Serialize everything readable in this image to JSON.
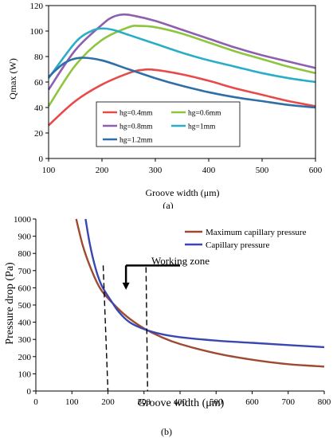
{
  "chart_data": [
    {
      "type": "line",
      "panel_label": "(a)",
      "xlabel": "Groove width (μm)",
      "ylabel": "Qmax (W)",
      "xlim": [
        100,
        600
      ],
      "ylim": [
        0,
        120
      ],
      "xticks": [
        "100",
        "200",
        "300",
        "400",
        "500",
        "600"
      ],
      "yticks": [
        "0",
        "20",
        "40",
        "60",
        "80",
        "100",
        "120"
      ],
      "grid": false,
      "legend_position": "inside-bottom-left",
      "series": [
        {
          "name": "hg=0.4mm",
          "color": "#e84a4a",
          "x": [
            100,
            150,
            200,
            250,
            275,
            300,
            350,
            400,
            450,
            500,
            550,
            600
          ],
          "y": [
            26,
            45,
            58,
            67,
            69.5,
            69.5,
            66,
            61,
            55,
            50,
            45,
            41
          ]
        },
        {
          "name": "hg=0.6mm",
          "color": "#8cc63f",
          "x": [
            100,
            150,
            200,
            250,
            270,
            300,
            350,
            400,
            450,
            500,
            550,
            600
          ],
          "y": [
            41,
            73,
            93,
            103,
            104,
            103,
            98,
            91,
            84,
            78,
            72,
            67
          ]
        },
        {
          "name": "hg=0.8mm",
          "color": "#8e5fb0",
          "x": [
            100,
            150,
            200,
            220,
            240,
            260,
            300,
            350,
            400,
            450,
            500,
            550,
            600
          ],
          "y": [
            54,
            85,
            105,
            111,
            113,
            112,
            108,
            101,
            94,
            87,
            81,
            76,
            71
          ]
        },
        {
          "name": "hg=1mm",
          "color": "#2aaec8",
          "x": [
            100,
            150,
            180,
            200,
            220,
            250,
            300,
            350,
            400,
            450,
            500,
            550,
            600
          ],
          "y": [
            63,
            91,
            100,
            102,
            101,
            97,
            90,
            83,
            77,
            72,
            67,
            63,
            60
          ]
        },
        {
          "name": "hg=1.2mm",
          "color": "#2f6fa8",
          "x": [
            100,
            130,
            160,
            200,
            250,
            300,
            350,
            400,
            450,
            500,
            550,
            600
          ],
          "y": [
            64,
            75,
            79,
            77,
            70,
            63,
            57,
            52,
            48,
            45,
            42,
            40
          ]
        }
      ]
    },
    {
      "type": "line",
      "panel_label": "(b)",
      "xlabel": "Groove width (μm)",
      "ylabel": "Pressure drop (Pa)",
      "xlim": [
        0,
        800
      ],
      "ylim": [
        0,
        1000
      ],
      "xticks": [
        "0",
        "100",
        "200",
        "300",
        "400",
        "500",
        "600",
        "700",
        "800"
      ],
      "yticks": [
        "0",
        "100",
        "200",
        "300",
        "400",
        "500",
        "600",
        "700",
        "800",
        "900",
        "1000"
      ],
      "grid": false,
      "legend_position": "top-right",
      "annotation": "Working zone",
      "working_zone": [
        200,
        310
      ],
      "series": [
        {
          "name": "Maximum capillary pressure",
          "color": "#9e4a32",
          "x": [
            112,
            130,
            150,
            175,
            200,
            250,
            300,
            350,
            400,
            500,
            600,
            700,
            800
          ],
          "y": [
            1000,
            847,
            726,
            609,
            540,
            437,
            364,
            312,
            273,
            219,
            182,
            156,
            142
          ]
        },
        {
          "name": "Capillary pressure",
          "color": "#3a47b0",
          "x": [
            138,
            150,
            165,
            180,
            195,
            210,
            230,
            260,
            300,
            350,
            400,
            500,
            600,
            700,
            800
          ],
          "y": [
            1000,
            852,
            718,
            625,
            568,
            521,
            460,
            400,
            360,
            330,
            313,
            293,
            280,
            267,
            255
          ]
        }
      ]
    }
  ]
}
